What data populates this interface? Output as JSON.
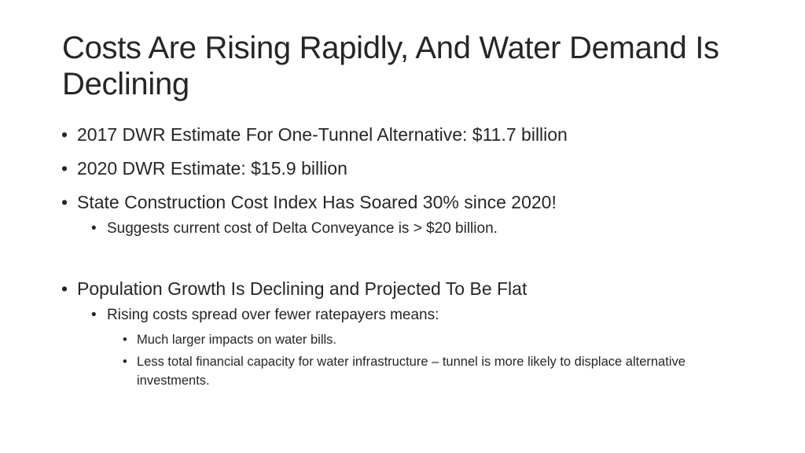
{
  "slide": {
    "title": "Costs Are Rising Rapidly, And Water Demand Is Declining",
    "bullet_glyph": "•",
    "bullets": [
      {
        "level": 1,
        "text": "2017 DWR Estimate For One-Tunnel Alternative: $11.7 billion"
      },
      {
        "level": 1,
        "text": "2020 DWR Estimate: $15.9 billion"
      },
      {
        "level": 1,
        "text": "State Construction Cost Index Has Soared 30% since 2020!"
      },
      {
        "level": 2,
        "text": "Suggests current cost of Delta Conveyance is > $20 billion."
      },
      {
        "level": 1,
        "text": "Population Growth Is Declining and Projected To Be Flat"
      },
      {
        "level": 2,
        "text": "Rising costs spread over fewer ratepayers means:"
      },
      {
        "level": 3,
        "text": "Much larger impacts on water bills."
      },
      {
        "level": 3,
        "text": "Less total financial capacity for water infrastructure – tunnel is more likely to displace alternative investments."
      }
    ]
  }
}
